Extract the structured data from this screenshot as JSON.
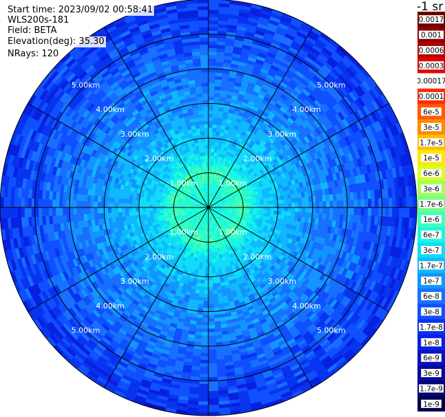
{
  "header": {
    "start_time": "Start time: 2023/09/02 00:58:41",
    "instrument": "WLS200s-181",
    "field": "Field: BETA",
    "elevation": "Elevation(deg): 35.30",
    "nrays": "NRays: 120"
  },
  "colorbar": {
    "unit_label": "-1 sr",
    "labels": [
      "0.0017",
      "0.001",
      "0.0006",
      "0.0003",
      "0.00017",
      "0.0001",
      "6e-5",
      "3e-5",
      "1.7e-5",
      "1e-5",
      "6e-6",
      "3e-6",
      "1.7e-6",
      "1e-6",
      "6e-7",
      "3e-7",
      "1.7e-7",
      "1e-7",
      "6e-8",
      "3e-8",
      "1.7e-8",
      "1e-8",
      "6e-9",
      "3e-9",
      "1.7e-9",
      "1e-9"
    ],
    "colors": [
      "#6a0000",
      "#8e0000",
      "#b80000",
      "#e20000",
      "#ffffff",
      "#ff2a00",
      "#ff5a00",
      "#ff8c00",
      "#ffc000",
      "#ffe800",
      "#d8ff20",
      "#a0ff58",
      "#70ff88",
      "#40ffb8",
      "#18f8e0",
      "#10dcf8",
      "#10b8ff",
      "#1494ff",
      "#1870ff",
      "#1050ff",
      "#0834f0",
      "#0820e0",
      "#0812c0",
      "#040a9a",
      "#020576",
      "#000050"
    ]
  },
  "chart_data": {
    "type": "polar-ppi",
    "field": "BETA",
    "elevation_deg": 35.3,
    "n_rays": 120,
    "range_rings_km": [
      1.0,
      2.0,
      3.0,
      4.0,
      5.0
    ],
    "ring_labels": [
      "1.00km",
      "2.00km",
      "3.00km",
      "4.00km",
      "5.00km"
    ],
    "max_range_km": 6.0,
    "radial_lines_deg": [
      0,
      30,
      60,
      90,
      120,
      150,
      180,
      210,
      240,
      270,
      300,
      330
    ],
    "backscatter_profile": [
      {
        "range_km": 0.5,
        "beta": 6e-07
      },
      {
        "range_km": 1.0,
        "beta": 1e-06
      },
      {
        "range_km": 1.5,
        "beta": 3e-07
      },
      {
        "range_km": 2.0,
        "beta": 2e-07
      },
      {
        "range_km": 3.0,
        "beta": 1e-07
      },
      {
        "range_km": 4.0,
        "beta": 6e-08
      },
      {
        "range_km": 5.0,
        "beta": 3e-08
      },
      {
        "range_km": 6.0,
        "beta": 1.7e-08
      }
    ]
  }
}
